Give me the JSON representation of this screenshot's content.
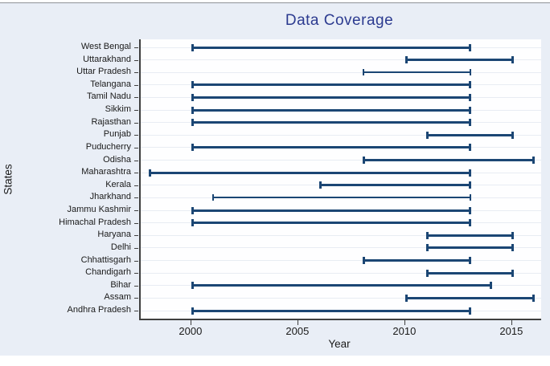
{
  "chart_data": {
    "type": "bar",
    "subtype": "horizontal_range_plot",
    "title": "Data Coverage",
    "xlabel": "Year",
    "ylabel": "States",
    "xlim": [
      1997.6,
      2016.32
    ],
    "x_ticks": [
      2000,
      2005,
      2010,
      2015
    ],
    "grid": "faint horizontal guide line per category row",
    "legend": "none",
    "states": [
      {
        "name": "West Bengal",
        "start": 2000,
        "end": 2013
      },
      {
        "name": "Uttarakhand",
        "start": 2010,
        "end": 2015
      },
      {
        "name": "Uttar Pradesh",
        "start": 2008,
        "end": 2013,
        "thin": true
      },
      {
        "name": "Telangana",
        "start": 2000,
        "end": 2013
      },
      {
        "name": "Tamil Nadu",
        "start": 2000,
        "end": 2013
      },
      {
        "name": "Sikkim",
        "start": 2000,
        "end": 2013
      },
      {
        "name": "Rajasthan",
        "start": 2000,
        "end": 2013
      },
      {
        "name": "Punjab",
        "start": 2011,
        "end": 2015
      },
      {
        "name": "Puducherry",
        "start": 2000,
        "end": 2013
      },
      {
        "name": "Odisha",
        "start": 2008,
        "end": 2016
      },
      {
        "name": "Maharashtra",
        "start": 1998,
        "end": 2013
      },
      {
        "name": "Kerala",
        "start": 2006,
        "end": 2013
      },
      {
        "name": "Jharkhand",
        "start": 2001,
        "end": 2013,
        "thin": true
      },
      {
        "name": "Jammu Kashmir",
        "start": 2000,
        "end": 2013
      },
      {
        "name": "Himachal Pradesh",
        "start": 2000,
        "end": 2013
      },
      {
        "name": "Haryana",
        "start": 2011,
        "end": 2015
      },
      {
        "name": "Delhi",
        "start": 2011,
        "end": 2015
      },
      {
        "name": "Chhattisgarh",
        "start": 2008,
        "end": 2013
      },
      {
        "name": "Chandigarh",
        "start": 2011,
        "end": 2015
      },
      {
        "name": "Bihar",
        "start": 2000,
        "end": 2014
      },
      {
        "name": "Assam",
        "start": 2010,
        "end": 2016
      },
      {
        "name": "Andhra Pradesh",
        "start": 2000,
        "end": 2013
      }
    ]
  },
  "colors": {
    "bar": "#1b4674",
    "title": "#2c3b90",
    "panel_background": "#e9eef6",
    "plot_background": "#fefeff",
    "gridline": "#e8ecf3",
    "axis": "#3f3f3f",
    "text": "#1a1a1a"
  }
}
